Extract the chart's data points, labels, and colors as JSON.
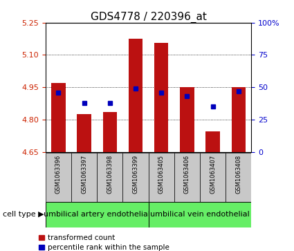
{
  "title": "GDS4778 / 220396_at",
  "samples": [
    "GSM1063396",
    "GSM1063397",
    "GSM1063398",
    "GSM1063399",
    "GSM1063405",
    "GSM1063406",
    "GSM1063407",
    "GSM1063408"
  ],
  "red_values": [
    4.97,
    4.825,
    4.835,
    5.175,
    5.155,
    4.95,
    4.745,
    4.95
  ],
  "blue_values_pct": [
    46,
    38,
    38,
    49,
    46,
    43,
    35,
    47
  ],
  "ylim": [
    4.65,
    5.25
  ],
  "y_ticks": [
    4.65,
    4.8,
    4.95,
    5.1,
    5.25
  ],
  "y2_ticks": [
    0,
    25,
    50,
    75,
    100
  ],
  "y2_labels": [
    "0",
    "25",
    "50",
    "75",
    "100%"
  ],
  "bar_bottom": 4.65,
  "groups": [
    {
      "label": "umbilical artery endothelial",
      "start": 0,
      "end": 4
    },
    {
      "label": "umbilical vein endothelial",
      "start": 4,
      "end": 8
    }
  ],
  "cell_type_label": "cell type",
  "legend_red": "transformed count",
  "legend_blue": "percentile rank within the sample",
  "red_color": "#bb1111",
  "blue_color": "#0000bb",
  "bar_bg_color": "#c8c8c8",
  "group_bg_color": "#66ee66",
  "title_fontsize": 11,
  "tick_fontsize": 8,
  "sample_fontsize": 6,
  "group_fontsize": 8,
  "legend_fontsize": 7.5,
  "red_tick_color": "#cc2200",
  "blue_tick_color": "#0000cc"
}
